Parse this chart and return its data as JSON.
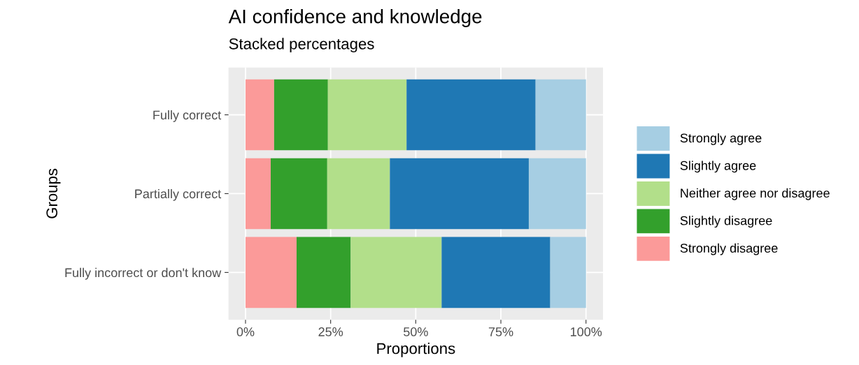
{
  "chart_data": {
    "type": "bar",
    "orientation": "horizontal",
    "stacked": true,
    "title": "AI confidence and knowledge",
    "subtitle": "Stacked percentages",
    "xlabel": "Proportions",
    "ylabel": "Groups",
    "categories": [
      "Fully correct",
      "Partially correct",
      "Fully incorrect or don't know"
    ],
    "series": [
      {
        "name": "Strongly disagree",
        "color": "#fb9a99",
        "values": [
          8.4,
          7.4,
          15.0
        ]
      },
      {
        "name": "Slightly disagree",
        "color": "#33a02c",
        "values": [
          15.8,
          16.6,
          15.9
        ]
      },
      {
        "name": "Neither agree nor disagree",
        "color": "#b2df8a",
        "values": [
          23.1,
          18.4,
          26.7
        ]
      },
      {
        "name": "Slightly agree",
        "color": "#1f78b4",
        "values": [
          37.9,
          40.8,
          31.9
        ]
      },
      {
        "name": "Strongly agree",
        "color": "#a6cee3",
        "values": [
          14.8,
          16.8,
          10.5
        ]
      }
    ],
    "xlim": [
      -5,
      105
    ],
    "xticks": [
      {
        "value": 0,
        "label": "0%"
      },
      {
        "value": 25,
        "label": "25%"
      },
      {
        "value": 50,
        "label": "50%"
      },
      {
        "value": 75,
        "label": "75%"
      },
      {
        "value": 100,
        "label": "100%"
      }
    ],
    "grid": true,
    "legend": "right"
  }
}
